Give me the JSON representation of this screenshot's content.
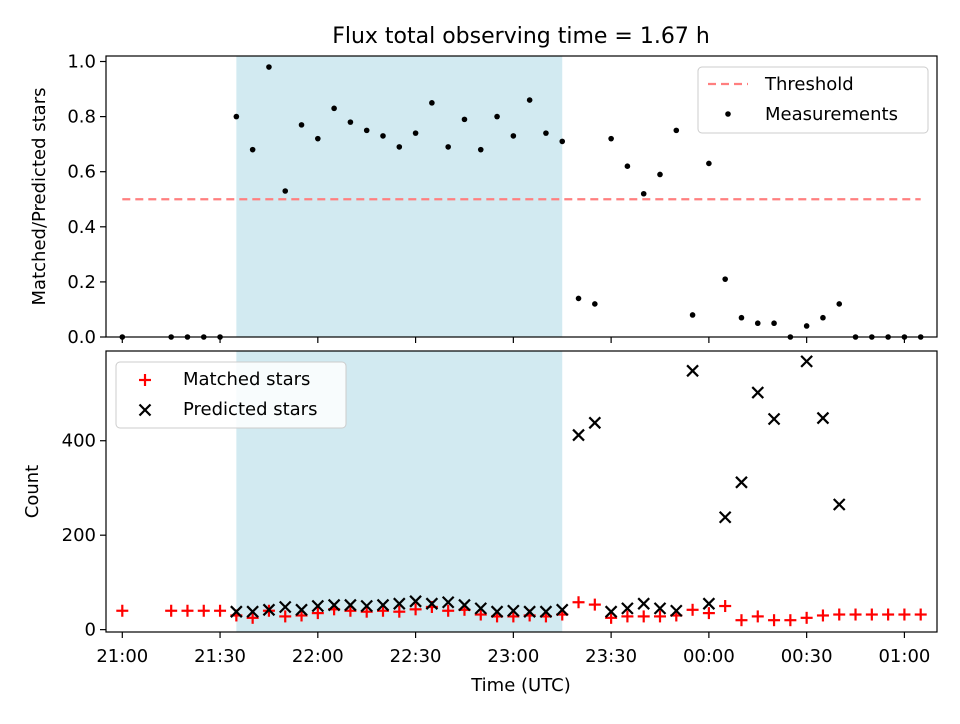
{
  "title": "Flux total observing time = 1.67 h",
  "colors": {
    "threshold": "#ff7f7f",
    "measurement": "#000000",
    "matched": "#ff0000",
    "predicted": "#000000",
    "span": "#add8e6"
  },
  "chart_data": [
    {
      "type": "scatter",
      "ylabel": "Matched/Predicted stars",
      "xlim": [
        "20:55",
        "01:10"
      ],
      "ylim": [
        0,
        1.02
      ],
      "yticks": [
        {
          "value": 0.0,
          "label": "0.0"
        },
        {
          "value": 0.2,
          "label": "0.2"
        },
        {
          "value": 0.4,
          "label": "0.4"
        },
        {
          "value": 0.6,
          "label": "0.6"
        },
        {
          "value": 0.8,
          "label": "0.8"
        },
        {
          "value": 1.0,
          "label": "1.0"
        }
      ],
      "legend_position": "top-right",
      "highlight_span": [
        "21:35",
        "23:15"
      ],
      "threshold": {
        "name": "Threshold",
        "value": 0.5,
        "x_range": [
          "21:00",
          "01:05"
        ]
      },
      "series": [
        {
          "name": "Measurements",
          "points": [
            [
              "21:00",
              0.0
            ],
            [
              "21:15",
              0.0
            ],
            [
              "21:20",
              0.0
            ],
            [
              "21:25",
              0.0
            ],
            [
              "21:30",
              0.0
            ],
            [
              "21:35",
              0.8
            ],
            [
              "21:40",
              0.68
            ],
            [
              "21:45",
              0.98
            ],
            [
              "21:50",
              0.53
            ],
            [
              "21:55",
              0.77
            ],
            [
              "22:00",
              0.72
            ],
            [
              "22:05",
              0.83
            ],
            [
              "22:10",
              0.78
            ],
            [
              "22:15",
              0.75
            ],
            [
              "22:20",
              0.73
            ],
            [
              "22:25",
              0.69
            ],
            [
              "22:30",
              0.74
            ],
            [
              "22:35",
              0.85
            ],
            [
              "22:40",
              0.69
            ],
            [
              "22:45",
              0.79
            ],
            [
              "22:50",
              0.68
            ],
            [
              "22:55",
              0.8
            ],
            [
              "23:00",
              0.73
            ],
            [
              "23:05",
              0.86
            ],
            [
              "23:10",
              0.74
            ],
            [
              "23:15",
              0.71
            ],
            [
              "23:20",
              0.14
            ],
            [
              "23:25",
              0.12
            ],
            [
              "23:30",
              0.72
            ],
            [
              "23:35",
              0.62
            ],
            [
              "23:40",
              0.52
            ],
            [
              "23:45",
              0.59
            ],
            [
              "23:50",
              0.75
            ],
            [
              "23:55",
              0.08
            ],
            [
              "00:00",
              0.63
            ],
            [
              "00:05",
              0.21
            ],
            [
              "00:10",
              0.07
            ],
            [
              "00:15",
              0.05
            ],
            [
              "00:20",
              0.05
            ],
            [
              "00:25",
              0.0
            ],
            [
              "00:30",
              0.04
            ],
            [
              "00:35",
              0.07
            ],
            [
              "00:40",
              0.12
            ],
            [
              "00:45",
              0.0
            ],
            [
              "00:50",
              0.0
            ],
            [
              "00:55",
              0.0
            ],
            [
              "01:00",
              0.0
            ],
            [
              "01:05",
              0.0
            ]
          ]
        }
      ]
    },
    {
      "type": "scatter",
      "xlabel": "Time (UTC)",
      "ylabel": "Count",
      "xlim": [
        "20:55",
        "01:10"
      ],
      "ylim": [
        -5,
        590
      ],
      "yticks": [
        {
          "value": 0,
          "label": "0"
        },
        {
          "value": 200,
          "label": "200"
        },
        {
          "value": 400,
          "label": "400"
        }
      ],
      "xticks": [
        "21:00",
        "21:30",
        "22:00",
        "22:30",
        "23:00",
        "23:30",
        "00:00",
        "00:30",
        "01:00"
      ],
      "legend_position": "top-left",
      "highlight_span": [
        "21:35",
        "23:15"
      ],
      "series": [
        {
          "name": "Matched stars",
          "marker": "plus",
          "points": [
            [
              "21:00",
              40
            ],
            [
              "21:15",
              40
            ],
            [
              "21:20",
              40
            ],
            [
              "21:25",
              40
            ],
            [
              "21:30",
              40
            ],
            [
              "21:35",
              30
            ],
            [
              "21:40",
              25
            ],
            [
              "21:45",
              40
            ],
            [
              "21:50",
              28
            ],
            [
              "21:55",
              30
            ],
            [
              "22:00",
              35
            ],
            [
              "22:05",
              43
            ],
            [
              "22:10",
              40
            ],
            [
              "22:15",
              38
            ],
            [
              "22:20",
              40
            ],
            [
              "22:25",
              38
            ],
            [
              "22:30",
              43
            ],
            [
              "22:35",
              48
            ],
            [
              "22:40",
              40
            ],
            [
              "22:45",
              42
            ],
            [
              "22:50",
              32
            ],
            [
              "22:55",
              28
            ],
            [
              "23:00",
              28
            ],
            [
              "23:05",
              30
            ],
            [
              "23:10",
              28
            ],
            [
              "23:15",
              32
            ],
            [
              "23:20",
              58
            ],
            [
              "23:25",
              53
            ],
            [
              "23:30",
              25
            ],
            [
              "23:35",
              28
            ],
            [
              "23:40",
              28
            ],
            [
              "23:45",
              28
            ],
            [
              "23:50",
              30
            ],
            [
              "23:55",
              42
            ],
            [
              "00:00",
              35
            ],
            [
              "00:05",
              50
            ],
            [
              "00:10",
              20
            ],
            [
              "00:15",
              28
            ],
            [
              "00:20",
              20
            ],
            [
              "00:25",
              20
            ],
            [
              "00:30",
              25
            ],
            [
              "00:35",
              30
            ],
            [
              "00:40",
              32
            ],
            [
              "00:45",
              32
            ],
            [
              "00:50",
              32
            ],
            [
              "00:55",
              32
            ],
            [
              "01:00",
              32
            ],
            [
              "01:05",
              32
            ]
          ]
        },
        {
          "name": "Predicted stars",
          "marker": "x",
          "points": [
            [
              "21:35",
              38
            ],
            [
              "21:40",
              38
            ],
            [
              "21:45",
              42
            ],
            [
              "21:50",
              48
            ],
            [
              "21:55",
              42
            ],
            [
              "22:00",
              50
            ],
            [
              "22:05",
              52
            ],
            [
              "22:10",
              52
            ],
            [
              "22:15",
              50
            ],
            [
              "22:20",
              52
            ],
            [
              "22:25",
              55
            ],
            [
              "22:30",
              60
            ],
            [
              "22:35",
              55
            ],
            [
              "22:40",
              58
            ],
            [
              "22:45",
              52
            ],
            [
              "22:50",
              45
            ],
            [
              "22:55",
              38
            ],
            [
              "23:00",
              40
            ],
            [
              "23:05",
              38
            ],
            [
              "23:10",
              38
            ],
            [
              "23:15",
              42
            ],
            [
              "23:20",
              412
            ],
            [
              "23:25",
              438
            ],
            [
              "23:30",
              38
            ],
            [
              "23:35",
              45
            ],
            [
              "23:40",
              55
            ],
            [
              "23:45",
              45
            ],
            [
              "23:50",
              40
            ],
            [
              "23:55",
              548
            ],
            [
              "00:00",
              55
            ],
            [
              "00:05",
              238
            ],
            [
              "00:10",
              312
            ],
            [
              "00:15",
              502
            ],
            [
              "00:20",
              446
            ],
            [
              "00:30",
              568
            ],
            [
              "00:35",
              448
            ],
            [
              "00:40",
              265
            ]
          ]
        }
      ]
    }
  ]
}
